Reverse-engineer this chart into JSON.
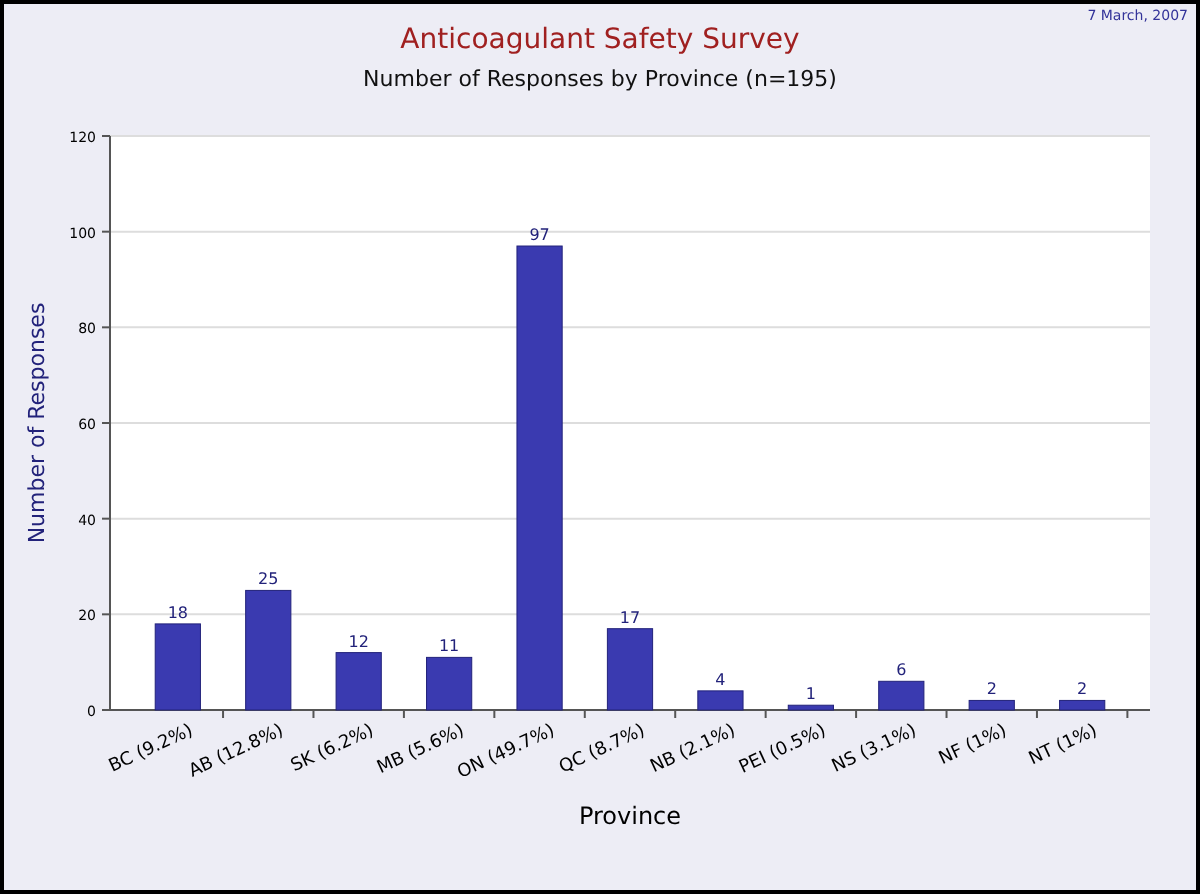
{
  "chart_data": {
    "type": "bar",
    "title": "Anticoagulant Safety Survey",
    "subtitle": "Number of Responses by Province (n=195)",
    "xlabel": "Province",
    "ylabel": "Number of Responses",
    "annotations": [
      "7 March, 2007"
    ],
    "categories": [
      "BC (9.2%)",
      "AB (12.8%)",
      "SK (6.2%)",
      "MB (5.6%)",
      "ON (49.7%)",
      "QC (8.7%)",
      "NB (2.1%)",
      "PEI (0.5%)",
      "NS (3.1%)",
      "NF (1%)",
      "NT (1%)"
    ],
    "values": [
      18,
      25,
      12,
      11,
      97,
      17,
      4,
      1,
      6,
      2,
      2
    ],
    "color": "#3a3ab0",
    "ylim": [
      0,
      120
    ],
    "yticks": [
      0,
      20,
      40,
      60,
      80,
      100,
      120
    ],
    "grid": "y",
    "data_labels": true
  }
}
